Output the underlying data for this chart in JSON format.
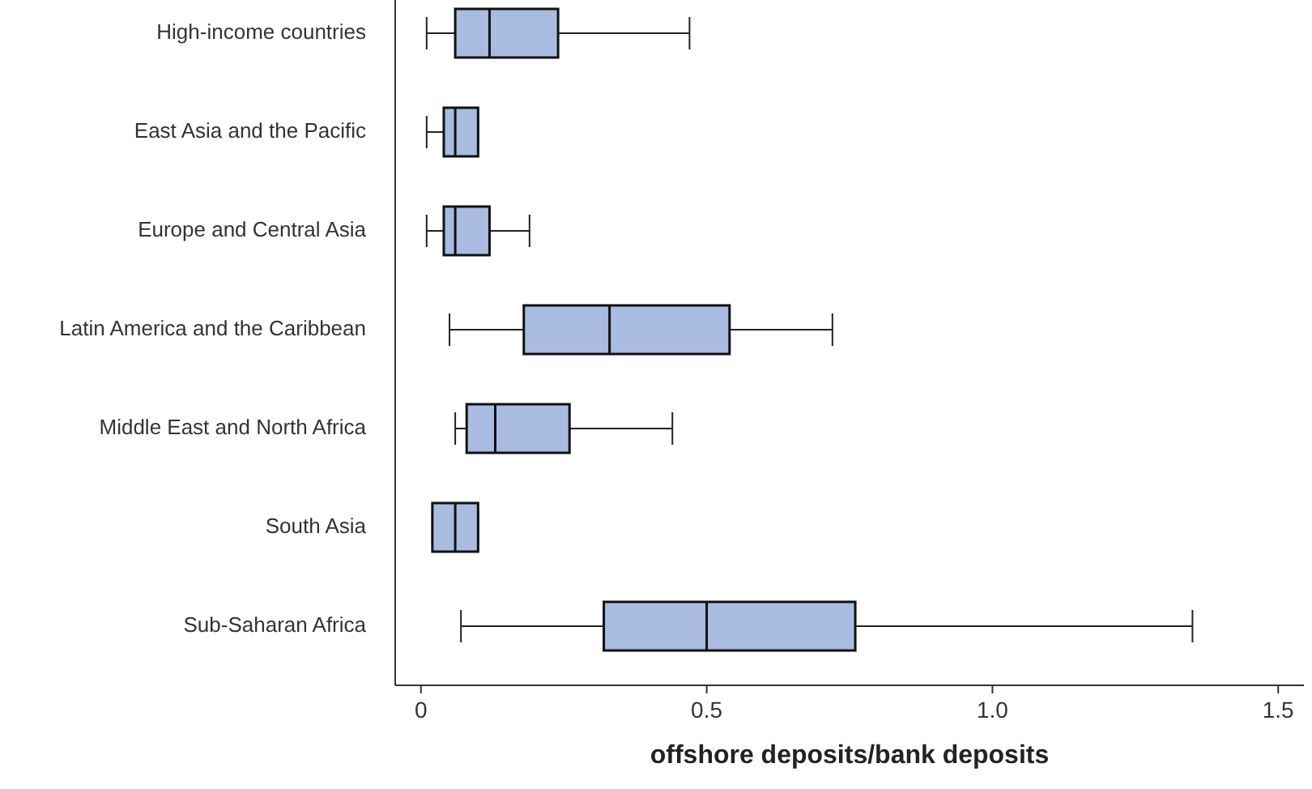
{
  "chart_data": {
    "type": "box",
    "orientation": "horizontal",
    "xlabel": "offshore deposits/bank deposits",
    "categories": [
      "High-income countries",
      "East Asia and the Pacific",
      "Europe and Central Asia",
      "Latin America and the Caribbean",
      "Middle East and North Africa",
      "South Asia",
      "Sub-Saharan Africa"
    ],
    "color": "#a9bbe1",
    "boxes": [
      {
        "low": 0.01,
        "q1": 0.06,
        "median": 0.12,
        "q3": 0.24,
        "high": 0.47
      },
      {
        "low": 0.01,
        "q1": 0.04,
        "median": 0.06,
        "q3": 0.1,
        "high": 0.1
      },
      {
        "low": 0.01,
        "q1": 0.04,
        "median": 0.06,
        "q3": 0.12,
        "high": 0.19
      },
      {
        "low": 0.05,
        "q1": 0.18,
        "median": 0.33,
        "q3": 0.54,
        "high": 0.72
      },
      {
        "low": 0.06,
        "q1": 0.08,
        "median": 0.13,
        "q3": 0.26,
        "high": 0.44
      },
      {
        "low": 0.02,
        "q1": 0.02,
        "median": 0.06,
        "q3": 0.1,
        "high": 0.1
      },
      {
        "low": 0.07,
        "q1": 0.32,
        "median": 0.5,
        "q3": 0.76,
        "high": 1.35
      }
    ],
    "xlim": [
      -0.045,
      1.545
    ],
    "xticks": [
      0,
      0.5,
      {
        "value": 1,
        "label": "1.0"
      },
      1.5
    ],
    "grid": false
  }
}
